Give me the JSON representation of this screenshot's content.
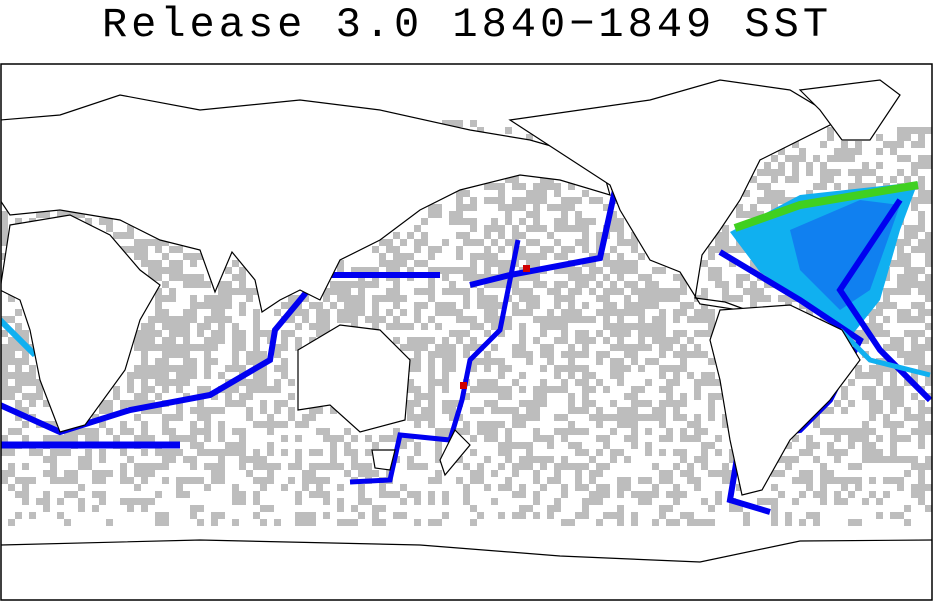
{
  "title": "Release 3.0 1840−1849 SST"
}
